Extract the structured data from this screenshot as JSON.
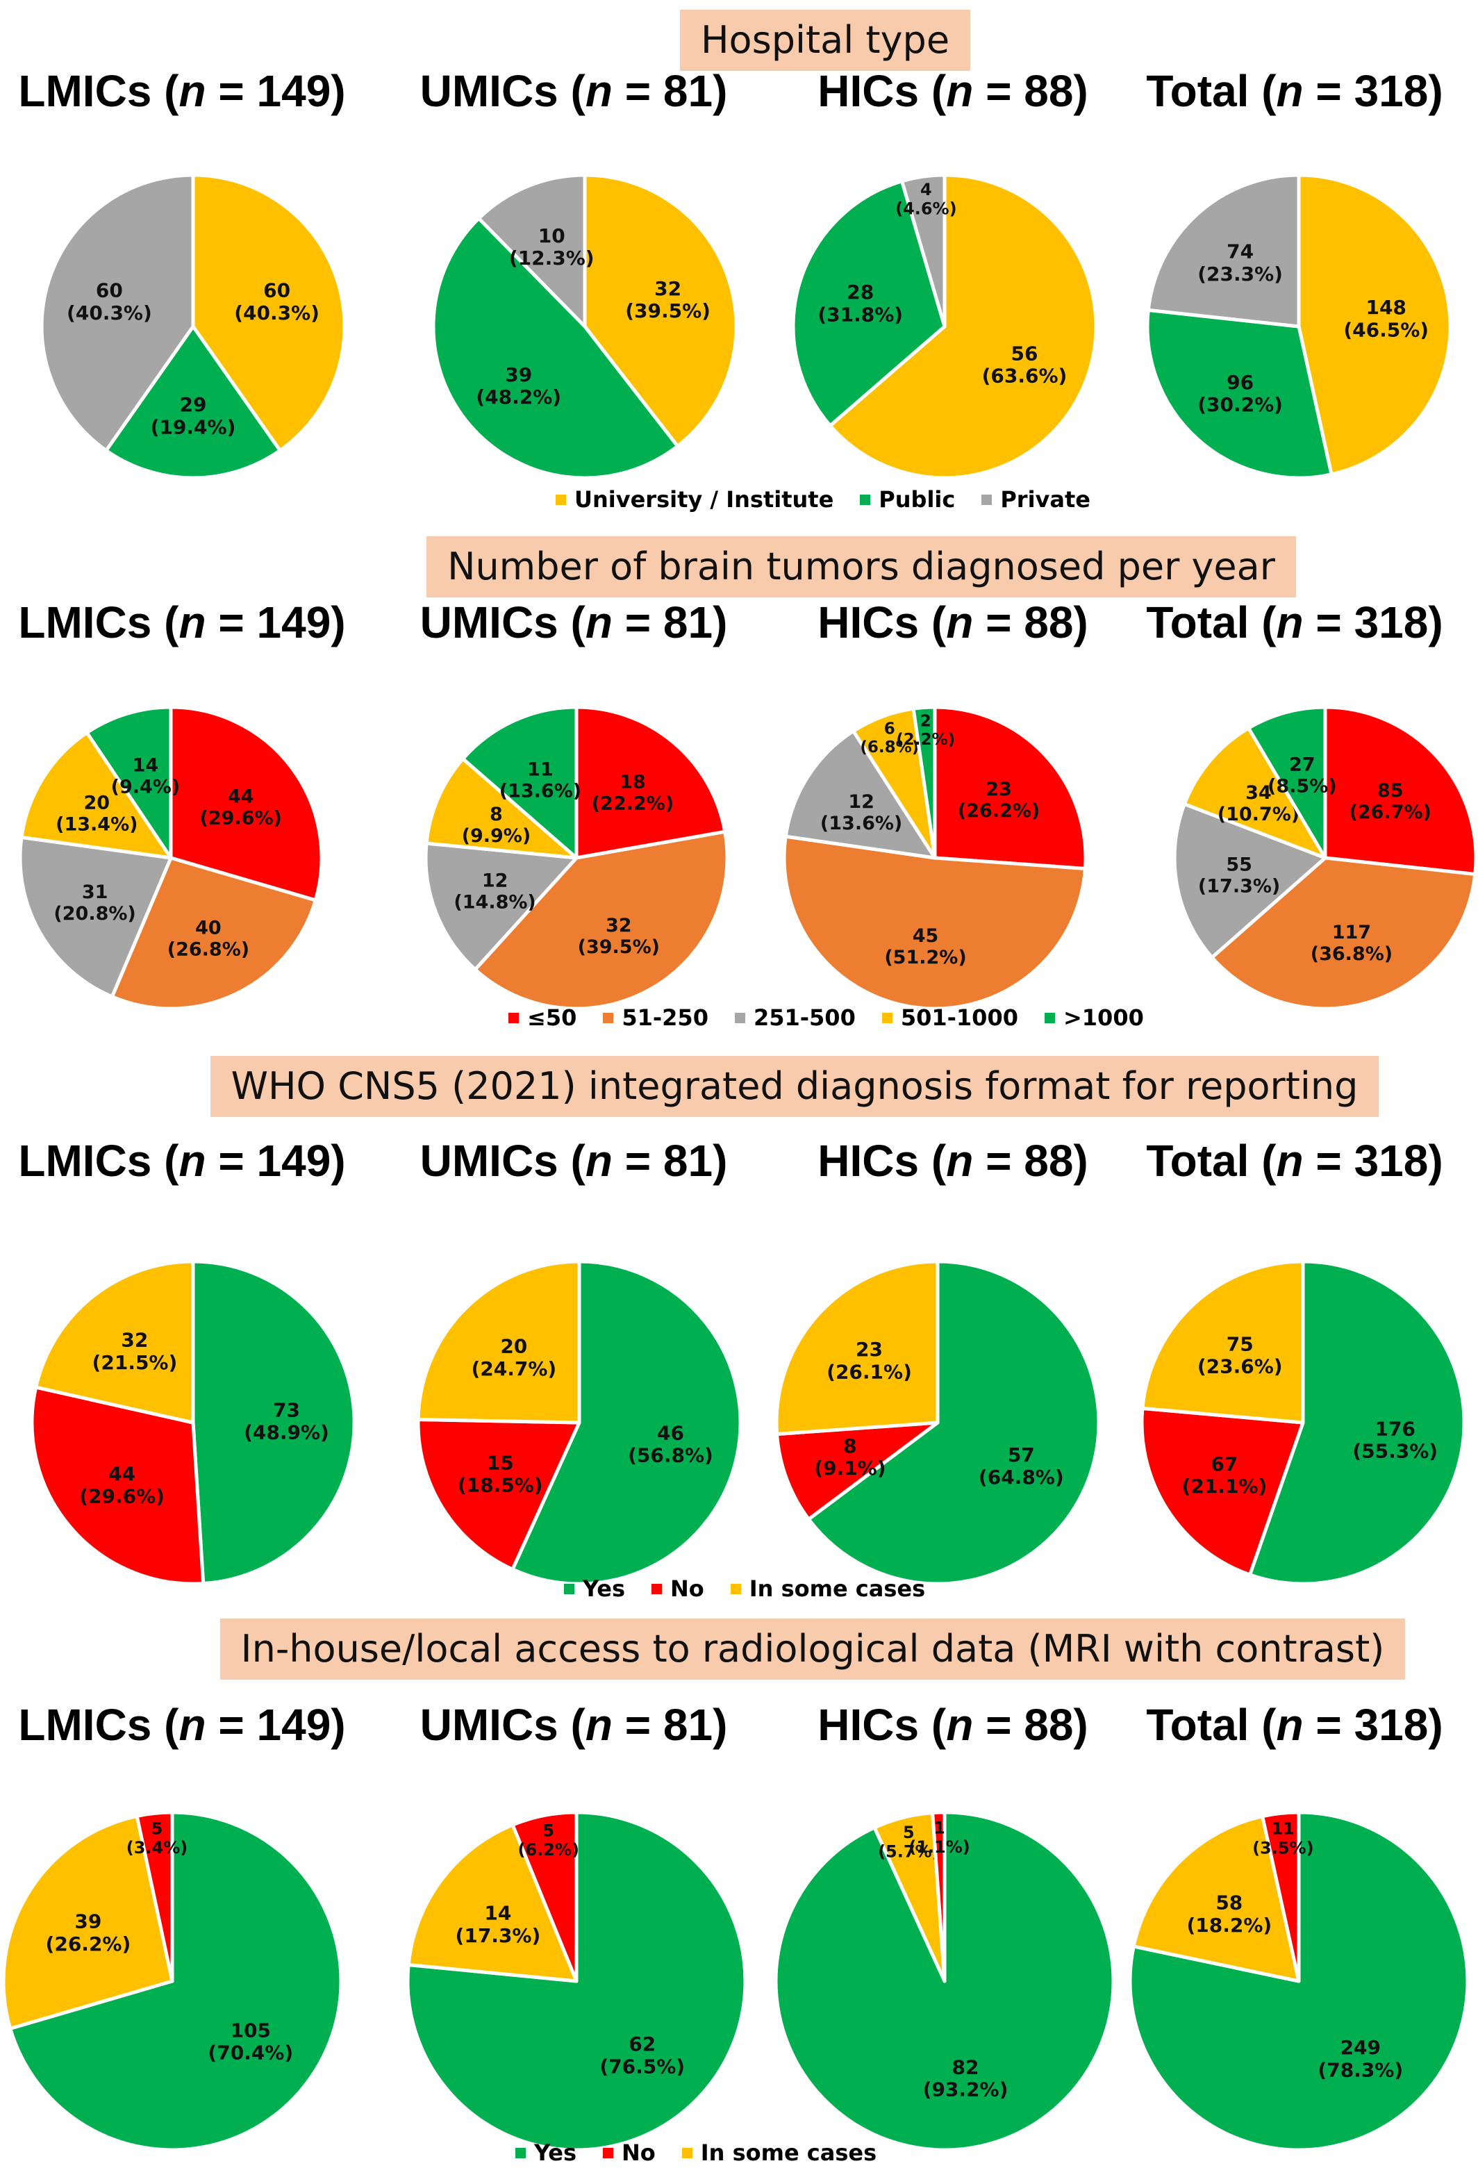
{
  "colors": {
    "yellow": "#ffc000",
    "green": "#00b050",
    "gray": "#a6a6a6",
    "red": "#ff0000",
    "orange": "#ed7d31",
    "title_bg": "#f8cbad"
  },
  "groups": [
    {
      "name": "LMICs",
      "n": "149"
    },
    {
      "name": "UMICs",
      "n": "81"
    },
    {
      "name": "HICs",
      "n": "88"
    },
    {
      "name": "Total",
      "n": "318"
    }
  ],
  "chart_data": [
    {
      "type": "pie",
      "title": "Hospital type",
      "legend": [
        "University / Institute",
        "Public",
        "Private"
      ],
      "legend_colors": [
        "yellow",
        "green",
        "gray"
      ],
      "pies": [
        {
          "group": "LMICs (n = 149)",
          "slices": [
            {
              "label": "University / Institute",
              "count": 60,
              "pct": "40.3%",
              "color": "yellow"
            },
            {
              "label": "Public",
              "count": 29,
              "pct": "19.4%",
              "color": "green"
            },
            {
              "label": "Private",
              "count": 60,
              "pct": "40.3%",
              "color": "gray"
            }
          ]
        },
        {
          "group": "UMICs (n = 81)",
          "slices": [
            {
              "label": "University / Institute",
              "count": 32,
              "pct": "39.5%",
              "color": "yellow"
            },
            {
              "label": "Public",
              "count": 39,
              "pct": "48.2%",
              "color": "green"
            },
            {
              "label": "Private",
              "count": 10,
              "pct": "12.3%",
              "color": "gray"
            }
          ]
        },
        {
          "group": "HICs (n = 88)",
          "slices": [
            {
              "label": "University / Institute",
              "count": 56,
              "pct": "63.6%",
              "color": "yellow"
            },
            {
              "label": "Public",
              "count": 28,
              "pct": "31.8%",
              "color": "green"
            },
            {
              "label": "Private",
              "count": 4,
              "pct": "4.6%",
              "color": "gray"
            }
          ]
        },
        {
          "group": "Total (n = 318)",
          "slices": [
            {
              "label": "University / Institute",
              "count": 148,
              "pct": "46.5%",
              "color": "yellow"
            },
            {
              "label": "Public",
              "count": 96,
              "pct": "30.2%",
              "color": "green"
            },
            {
              "label": "Private",
              "count": 74,
              "pct": "23.3%",
              "color": "gray"
            }
          ]
        }
      ]
    },
    {
      "type": "pie",
      "title": "Number of brain tumors diagnosed per year",
      "legend": [
        "≤50",
        "51-250",
        "251-500",
        "501-1000",
        ">1000"
      ],
      "legend_colors": [
        "red",
        "orange",
        "gray",
        "yellow",
        "green"
      ],
      "pies": [
        {
          "group": "LMICs (n = 149)",
          "slices": [
            {
              "label": "≤50",
              "count": 44,
              "pct": "29.6%",
              "color": "red"
            },
            {
              "label": "51-250",
              "count": 40,
              "pct": "26.8%",
              "color": "orange"
            },
            {
              "label": "251-500",
              "count": 31,
              "pct": "20.8%",
              "color": "gray"
            },
            {
              "label": "501-1000",
              "count": 20,
              "pct": "13.4%",
              "color": "yellow"
            },
            {
              "label": ">1000",
              "count": 14,
              "pct": "9.4%",
              "color": "green"
            }
          ]
        },
        {
          "group": "UMICs (n = 81)",
          "slices": [
            {
              "label": "≤50",
              "count": 18,
              "pct": "22.2%",
              "color": "red"
            },
            {
              "label": "51-250",
              "count": 32,
              "pct": "39.5%",
              "color": "orange"
            },
            {
              "label": "251-500",
              "count": 12,
              "pct": "14.8%",
              "color": "gray"
            },
            {
              "label": "501-1000",
              "count": 8,
              "pct": "9.9%",
              "color": "yellow"
            },
            {
              "label": ">1000",
              "count": 11,
              "pct": "13.6%",
              "color": "green"
            }
          ]
        },
        {
          "group": "HICs (n = 88)",
          "slices": [
            {
              "label": "≤50",
              "count": 23,
              "pct": "26.2%",
              "color": "red"
            },
            {
              "label": "51-250",
              "count": 45,
              "pct": "51.2%",
              "color": "orange"
            },
            {
              "label": "251-500",
              "count": 12,
              "pct": "13.6%",
              "color": "gray"
            },
            {
              "label": "501-1000",
              "count": 6,
              "pct": "6.8%",
              "color": "yellow"
            },
            {
              "label": ">1000",
              "count": 2,
              "pct": "2.2%",
              "color": "green"
            }
          ]
        },
        {
          "group": "Total (n = 318)",
          "slices": [
            {
              "label": "≤50",
              "count": 85,
              "pct": "26.7%",
              "color": "red"
            },
            {
              "label": "51-250",
              "count": 117,
              "pct": "36.8%",
              "color": "orange"
            },
            {
              "label": "251-500",
              "count": 55,
              "pct": "17.3%",
              "color": "gray"
            },
            {
              "label": "501-1000",
              "count": 34,
              "pct": "10.7%",
              "color": "yellow"
            },
            {
              "label": ">1000",
              "count": 27,
              "pct": "8.5%",
              "color": "green"
            }
          ]
        }
      ]
    },
    {
      "type": "pie",
      "title": "WHO CNS5 (2021) integrated diagnosis format for reporting",
      "legend": [
        "Yes",
        "No",
        "In some cases"
      ],
      "legend_colors": [
        "green",
        "red",
        "yellow"
      ],
      "pies": [
        {
          "group": "LMICs (n = 149)",
          "slices": [
            {
              "label": "Yes",
              "count": 73,
              "pct": "48.9%",
              "color": "green"
            },
            {
              "label": "No",
              "count": 44,
              "pct": "29.6%",
              "color": "red"
            },
            {
              "label": "In some cases",
              "count": 32,
              "pct": "21.5%",
              "color": "yellow"
            }
          ]
        },
        {
          "group": "UMICs (n = 81)",
          "slices": [
            {
              "label": "Yes",
              "count": 46,
              "pct": "56.8%",
              "color": "green"
            },
            {
              "label": "No",
              "count": 15,
              "pct": "18.5%",
              "color": "red"
            },
            {
              "label": "In some cases",
              "count": 20,
              "pct": "24.7%",
              "color": "yellow"
            }
          ]
        },
        {
          "group": "HICs (n = 88)",
          "slices": [
            {
              "label": "Yes",
              "count": 57,
              "pct": "64.8%",
              "color": "green"
            },
            {
              "label": "No",
              "count": 8,
              "pct": "9.1%",
              "color": "red"
            },
            {
              "label": "In some cases",
              "count": 23,
              "pct": "26.1%",
              "color": "yellow"
            }
          ]
        },
        {
          "group": "Total (n = 318)",
          "slices": [
            {
              "label": "Yes",
              "count": 176,
              "pct": "55.3%",
              "color": "green"
            },
            {
              "label": "No",
              "count": 67,
              "pct": "21.1%",
              "color": "red"
            },
            {
              "label": "In some cases",
              "count": 75,
              "pct": "23.6%",
              "color": "yellow"
            }
          ]
        }
      ]
    },
    {
      "type": "pie",
      "title": "In-house/local access to radiological data (MRI with contrast)",
      "legend": [
        "Yes",
        "No",
        "In some cases"
      ],
      "legend_colors": [
        "green",
        "red",
        "yellow"
      ],
      "pies": [
        {
          "group": "LMICs (n = 149)",
          "slices": [
            {
              "label": "Yes",
              "count": 105,
              "pct": "70.4%",
              "color": "green"
            },
            {
              "label": "In some cases",
              "count": 39,
              "pct": "26.2%",
              "color": "yellow"
            },
            {
              "label": "No",
              "count": 5,
              "pct": "3.4%",
              "color": "red"
            }
          ]
        },
        {
          "group": "UMICs (n = 81)",
          "slices": [
            {
              "label": "Yes",
              "count": 62,
              "pct": "76.5%",
              "color": "green"
            },
            {
              "label": "In some cases",
              "count": 14,
              "pct": "17.3%",
              "color": "yellow"
            },
            {
              "label": "No",
              "count": 5,
              "pct": "6.2%",
              "color": "red"
            }
          ]
        },
        {
          "group": "HICs (n = 88)",
          "slices": [
            {
              "label": "Yes",
              "count": 82,
              "pct": "93.2%",
              "color": "green"
            },
            {
              "label": "In some cases",
              "count": 5,
              "pct": "5.7%",
              "color": "yellow"
            },
            {
              "label": "No",
              "count": 1,
              "pct": "1.1%",
              "color": "red"
            }
          ]
        },
        {
          "group": "Total (n = 318)",
          "slices": [
            {
              "label": "Yes",
              "count": 249,
              "pct": "78.3%",
              "color": "green"
            },
            {
              "label": "In some cases",
              "count": 58,
              "pct": "18.2%",
              "color": "yellow"
            },
            {
              "label": "No",
              "count": 11,
              "pct": "3.5%",
              "color": "red"
            }
          ]
        }
      ]
    }
  ]
}
